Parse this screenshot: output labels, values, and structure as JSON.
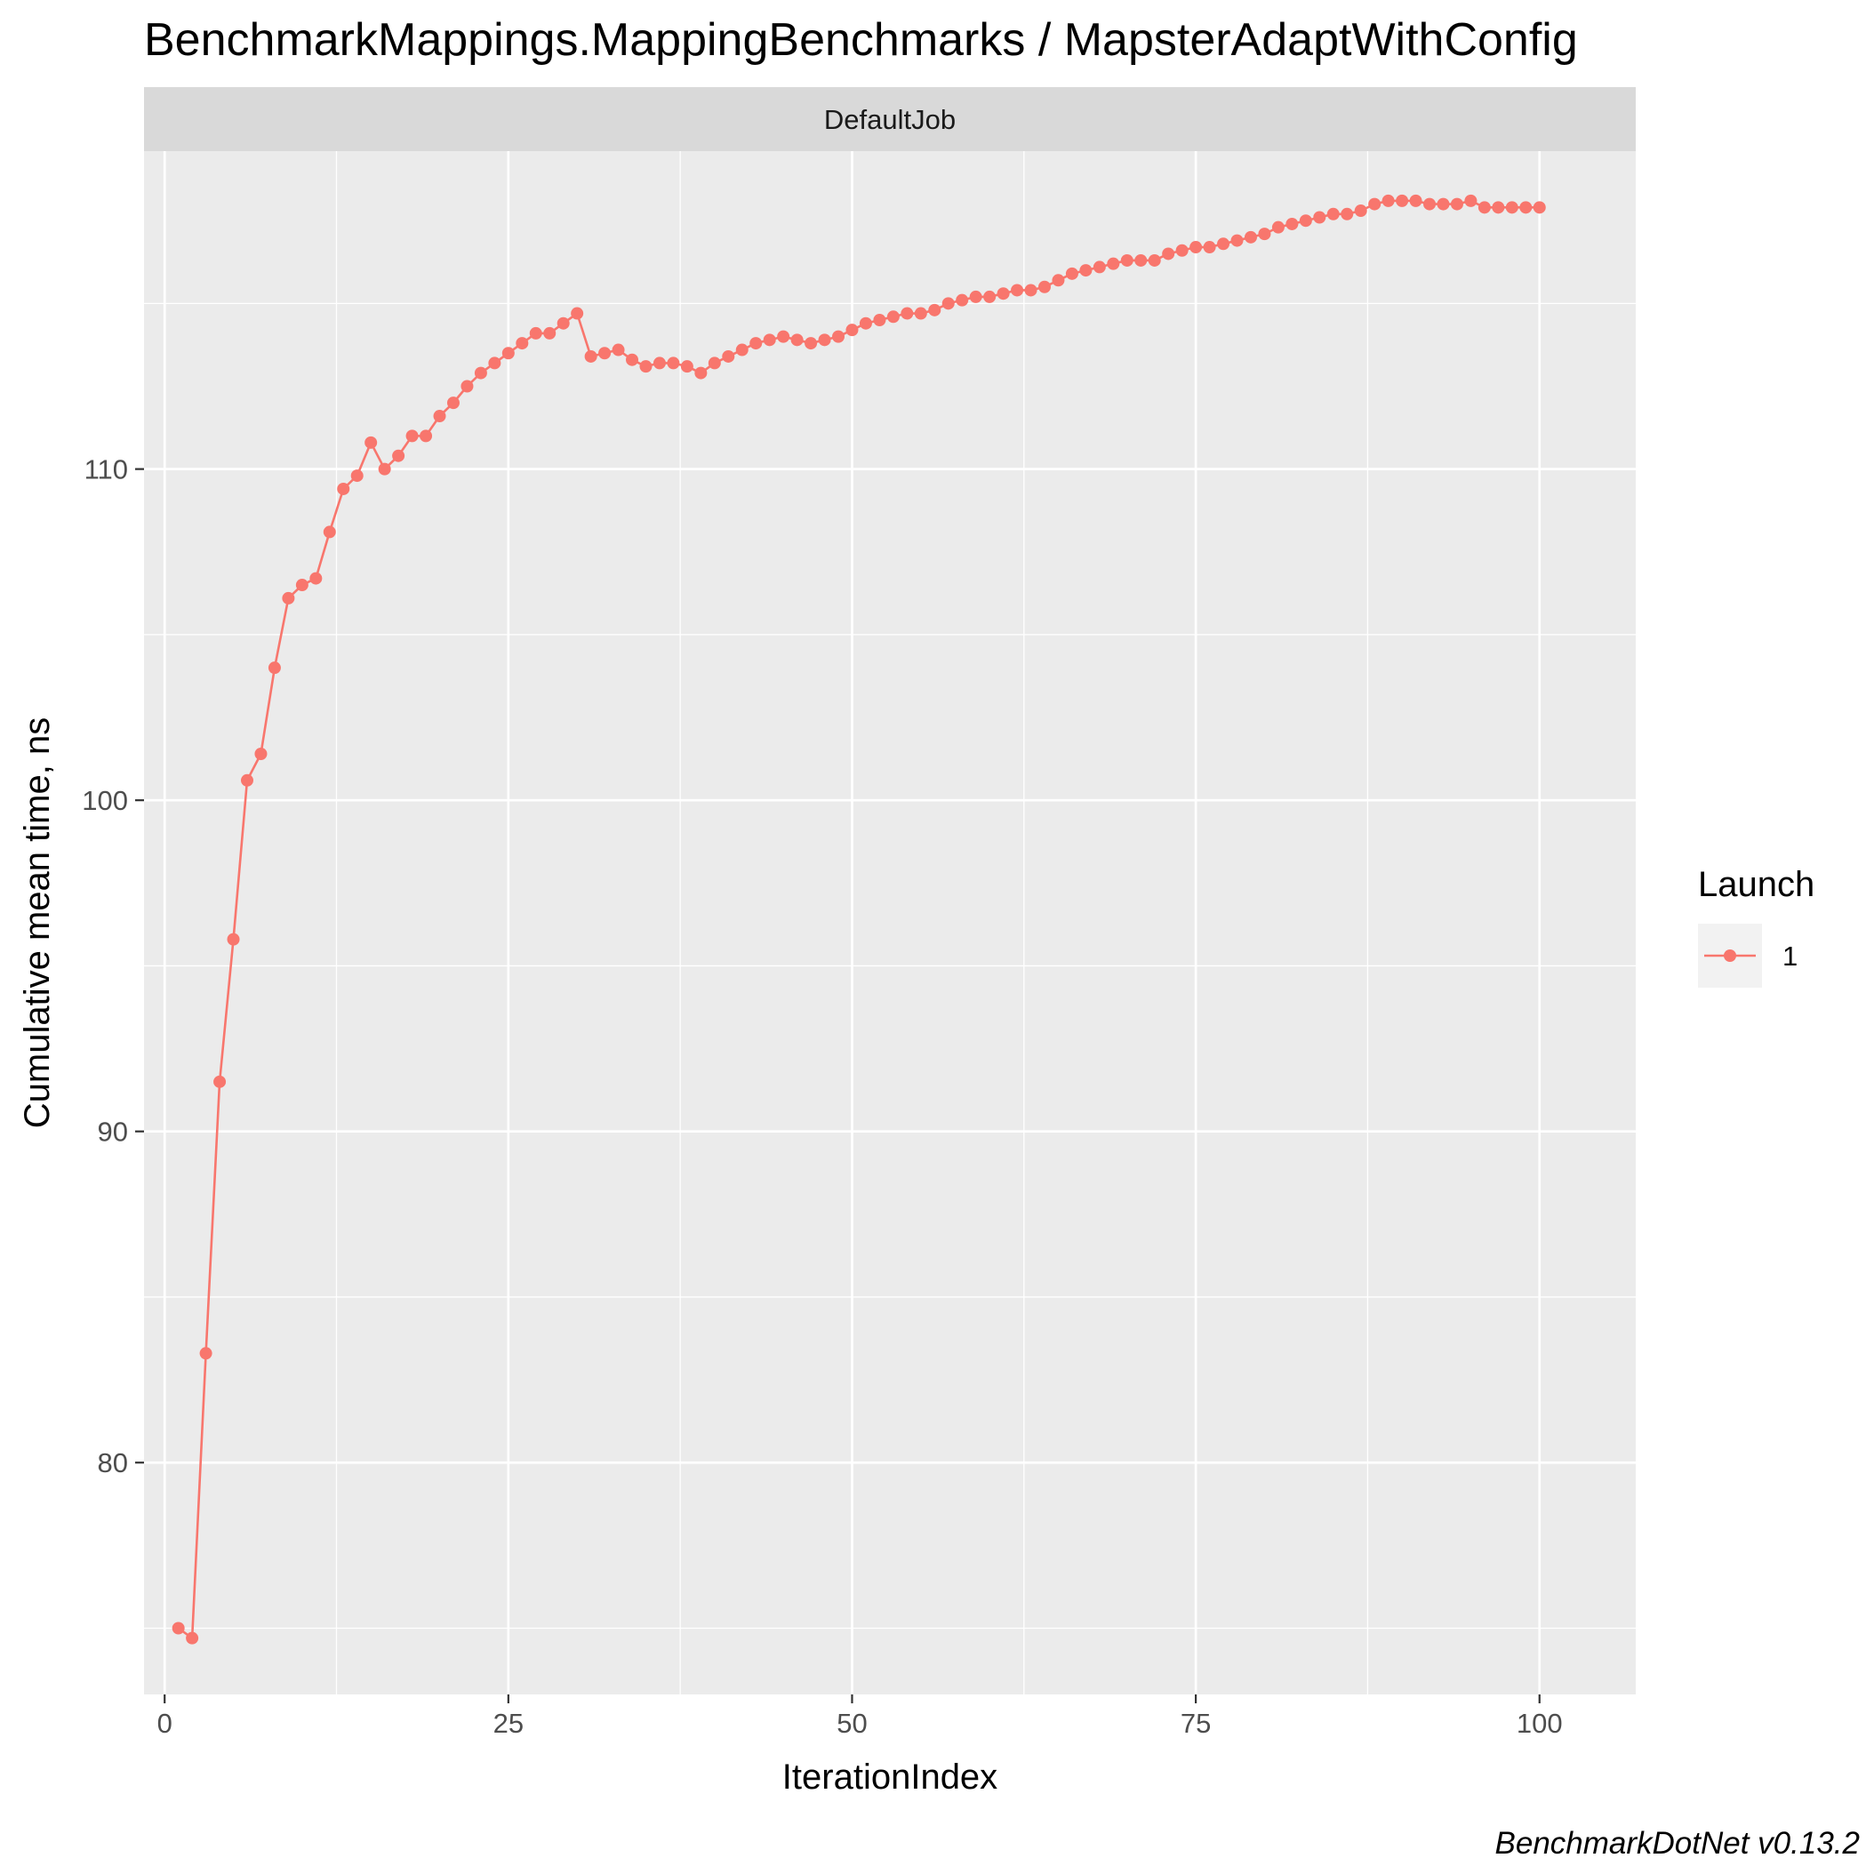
{
  "chart_data": {
    "type": "line",
    "title": "BenchmarkMappings.MappingBenchmarks / MapsterAdaptWithConfig",
    "facet": "DefaultJob",
    "xlabel": "IterationIndex",
    "ylabel": "Cumulative mean time, ns",
    "caption": "BenchmarkDotNet v0.13.2",
    "xlim": [
      -1.5,
      107
    ],
    "ylim": [
      73,
      119.6
    ],
    "x_ticks": [
      0,
      25,
      50,
      75,
      100
    ],
    "y_ticks": [
      80,
      90,
      100,
      110
    ],
    "grid": true,
    "legend": {
      "title": "Launch",
      "position": "right",
      "entries": [
        "1"
      ]
    },
    "series": [
      {
        "name": "1",
        "color": "#F8766D",
        "x": [
          1,
          2,
          3,
          4,
          5,
          6,
          7,
          8,
          9,
          10,
          11,
          12,
          13,
          14,
          15,
          16,
          17,
          18,
          19,
          20,
          21,
          22,
          23,
          24,
          25,
          26,
          27,
          28,
          29,
          30,
          31,
          32,
          33,
          34,
          35,
          36,
          37,
          38,
          39,
          40,
          41,
          42,
          43,
          44,
          45,
          46,
          47,
          48,
          49,
          50,
          51,
          52,
          53,
          54,
          55,
          56,
          57,
          58,
          59,
          60,
          61,
          62,
          63,
          64,
          65,
          66,
          67,
          68,
          69,
          70,
          71,
          72,
          73,
          74,
          75,
          76,
          77,
          78,
          79,
          80,
          81,
          82,
          83,
          84,
          85,
          86,
          87,
          88,
          89,
          90,
          91,
          92,
          93,
          94,
          95,
          96,
          97,
          98,
          99,
          100
        ],
        "y": [
          75.0,
          74.7,
          83.3,
          91.5,
          95.8,
          100.6,
          101.4,
          104.0,
          106.1,
          106.5,
          106.7,
          108.1,
          109.4,
          109.8,
          110.8,
          110.0,
          110.4,
          111.0,
          111.0,
          111.6,
          112.0,
          112.5,
          112.9,
          113.2,
          113.5,
          113.8,
          114.1,
          114.1,
          114.4,
          114.7,
          113.4,
          113.5,
          113.6,
          113.3,
          113.1,
          113.2,
          113.2,
          113.1,
          112.9,
          113.2,
          113.4,
          113.6,
          113.8,
          113.9,
          114.0,
          113.9,
          113.8,
          113.9,
          114.0,
          114.2,
          114.4,
          114.5,
          114.6,
          114.7,
          114.7,
          114.8,
          115.0,
          115.1,
          115.2,
          115.2,
          115.3,
          115.4,
          115.4,
          115.5,
          115.7,
          115.9,
          116.0,
          116.1,
          116.2,
          116.3,
          116.3,
          116.3,
          116.5,
          116.6,
          116.7,
          116.7,
          116.8,
          116.9,
          117.0,
          117.1,
          117.3,
          117.4,
          117.5,
          117.6,
          117.7,
          117.7,
          117.8,
          118.0,
          118.1,
          118.1,
          118.1,
          118.0,
          118.0,
          118.0,
          118.1,
          117.9,
          117.9,
          117.9,
          117.9,
          117.9
        ]
      }
    ]
  }
}
